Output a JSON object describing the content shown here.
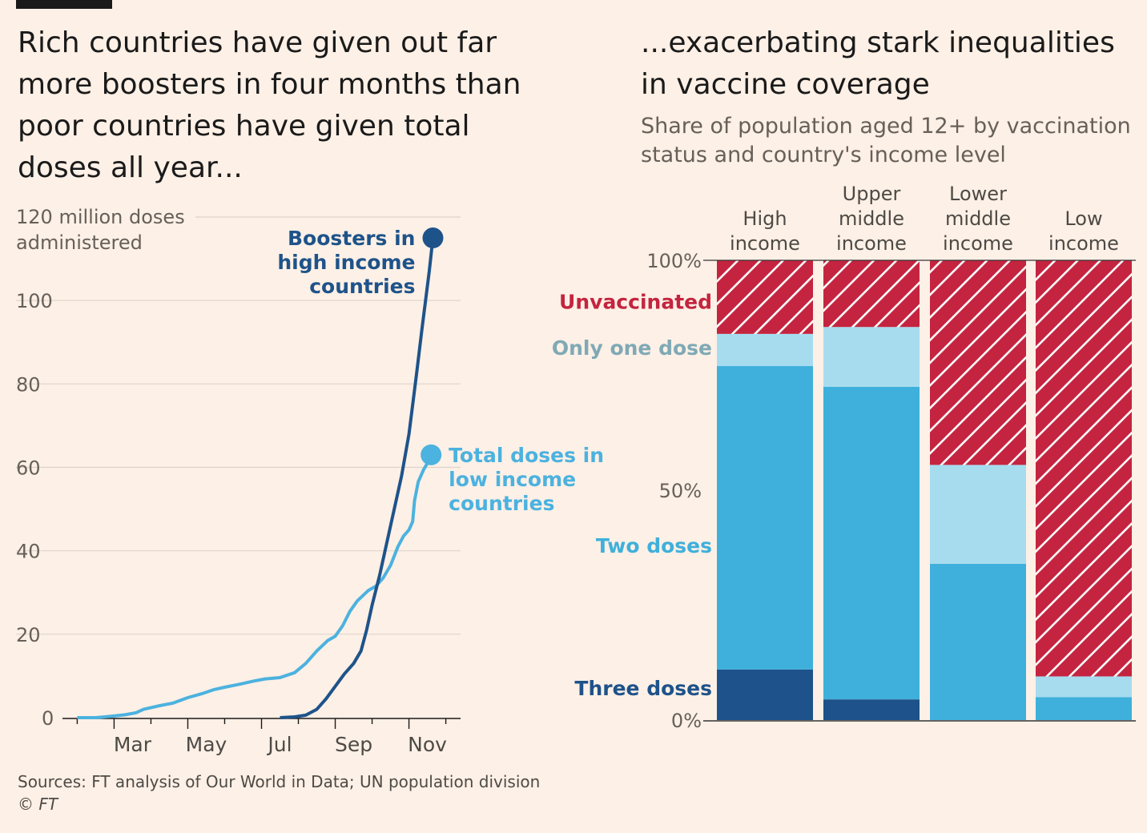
{
  "left_title": "Rich countries have given out far more boosters in four months than poor countries have given total doses all year...",
  "right_title": "...exacerbating stark inequalities in vaccine coverage",
  "right_subtitle": "Share of population aged 12+ by vaccination status and country's income level",
  "sources": "Sources: FT analysis of Our World in Data; UN population division",
  "credit": "© FT",
  "colors": {
    "boosters": "#1e538a",
    "low_income_total": "#4cb2df",
    "unvaccinated": "#c4243f",
    "one_dose": "#a7dcef",
    "two_doses": "#3fb0db",
    "three_doses": "#1e528a"
  },
  "chart_data": [
    {
      "type": "line",
      "ylabel": "120 million doses administered",
      "ylim": [
        0,
        120
      ],
      "yticks": [
        0,
        20,
        40,
        60,
        80,
        100,
        120
      ],
      "ytick_labels": [
        "0",
        "20",
        "40",
        "60",
        "80",
        "100"
      ],
      "y_top_label_lines": [
        "120 million doses",
        "administered"
      ],
      "x_tick_labels": [
        "Mar",
        "May",
        "Jul",
        "Sep",
        "Nov"
      ],
      "x_tick_months": [
        3,
        5,
        7,
        9,
        11
      ],
      "xlim_month": [
        1.6,
        12.4
      ],
      "grid": true,
      "series": [
        {
          "name": "Total doses in low income countries",
          "label_lines": [
            "Total doses in",
            "low income",
            "countries"
          ],
          "color_key": "low_income_total",
          "points": [
            [
              2.0,
              0
            ],
            [
              2.5,
              0
            ],
            [
              2.9,
              0.3
            ],
            [
              3.3,
              0.7
            ],
            [
              3.6,
              1.2
            ],
            [
              3.8,
              2.0
            ],
            [
              4.2,
              2.8
            ],
            [
              4.6,
              3.5
            ],
            [
              5.0,
              4.8
            ],
            [
              5.4,
              5.8
            ],
            [
              5.7,
              6.7
            ],
            [
              6.0,
              7.3
            ],
            [
              6.4,
              8.0
            ],
            [
              6.8,
              8.8
            ],
            [
              7.1,
              9.3
            ],
            [
              7.5,
              9.6
            ],
            [
              7.9,
              10.8
            ],
            [
              8.2,
              13.0
            ],
            [
              8.5,
              16.0
            ],
            [
              8.8,
              18.5
            ],
            [
              9.0,
              19.5
            ],
            [
              9.2,
              22.0
            ],
            [
              9.4,
              25.5
            ],
            [
              9.6,
              28.0
            ],
            [
              9.9,
              30.5
            ],
            [
              10.1,
              31.5
            ],
            [
              10.3,
              33.5
            ],
            [
              10.5,
              36.5
            ],
            [
              10.7,
              41.0
            ],
            [
              10.85,
              43.5
            ],
            [
              11.0,
              45.0
            ],
            [
              11.1,
              47.0
            ],
            [
              11.15,
              52.0
            ],
            [
              11.25,
              56.5
            ],
            [
              11.4,
              59.5
            ],
            [
              11.5,
              61.0
            ],
            [
              11.6,
              63.0
            ]
          ]
        },
        {
          "name": "Boosters in high income countries",
          "label_lines": [
            "Boosters in",
            "high income",
            "countries"
          ],
          "color_key": "boosters",
          "points": [
            [
              7.5,
              0
            ],
            [
              7.9,
              0.2
            ],
            [
              8.2,
              0.6
            ],
            [
              8.5,
              2.0
            ],
            [
              8.75,
              4.5
            ],
            [
              9.0,
              7.5
            ],
            [
              9.25,
              10.5
            ],
            [
              9.5,
              13.0
            ],
            [
              9.7,
              16.0
            ],
            [
              9.85,
              21.0
            ],
            [
              10.0,
              27.0
            ],
            [
              10.2,
              34.0
            ],
            [
              10.45,
              44.0
            ],
            [
              10.65,
              52.0
            ],
            [
              10.8,
              58.0
            ],
            [
              10.9,
              63.0
            ],
            [
              11.0,
              68.0
            ],
            [
              11.1,
              75.0
            ],
            [
              11.2,
              82.0
            ],
            [
              11.35,
              93.0
            ],
            [
              11.45,
              100.0
            ],
            [
              11.55,
              107.0
            ],
            [
              11.65,
              115.0
            ]
          ]
        }
      ]
    },
    {
      "type": "bar",
      "stacked": true,
      "ylim": [
        0,
        100
      ],
      "ytick_labels": [
        "0%",
        "50%",
        "100%"
      ],
      "yticks": [
        0,
        50,
        100
      ],
      "categories": [
        "High income",
        "Upper middle income",
        "Lower middle income",
        "Low income"
      ],
      "category_label_lines": [
        [
          "High",
          "income"
        ],
        [
          "Upper",
          "middle",
          "income"
        ],
        [
          "Lower",
          "middle",
          "income"
        ],
        [
          "Low",
          "income"
        ]
      ],
      "series": [
        {
          "name": "Three doses",
          "color_key": "three_doses",
          "values": [
            11,
            4.5,
            0,
            0
          ]
        },
        {
          "name": "Two doses",
          "color_key": "two_doses",
          "values": [
            66,
            68,
            34,
            5
          ]
        },
        {
          "name": "Only one dose",
          "color_key": "one_dose",
          "values": [
            7,
            13,
            21.5,
            4.5
          ]
        },
        {
          "name": "Unvaccinated",
          "color_key": "unvaccinated",
          "hatched": true,
          "values": [
            16,
            14.5,
            44.5,
            90.5
          ]
        }
      ],
      "legend_label_at": [
        7,
        38,
        81,
        91
      ]
    }
  ]
}
